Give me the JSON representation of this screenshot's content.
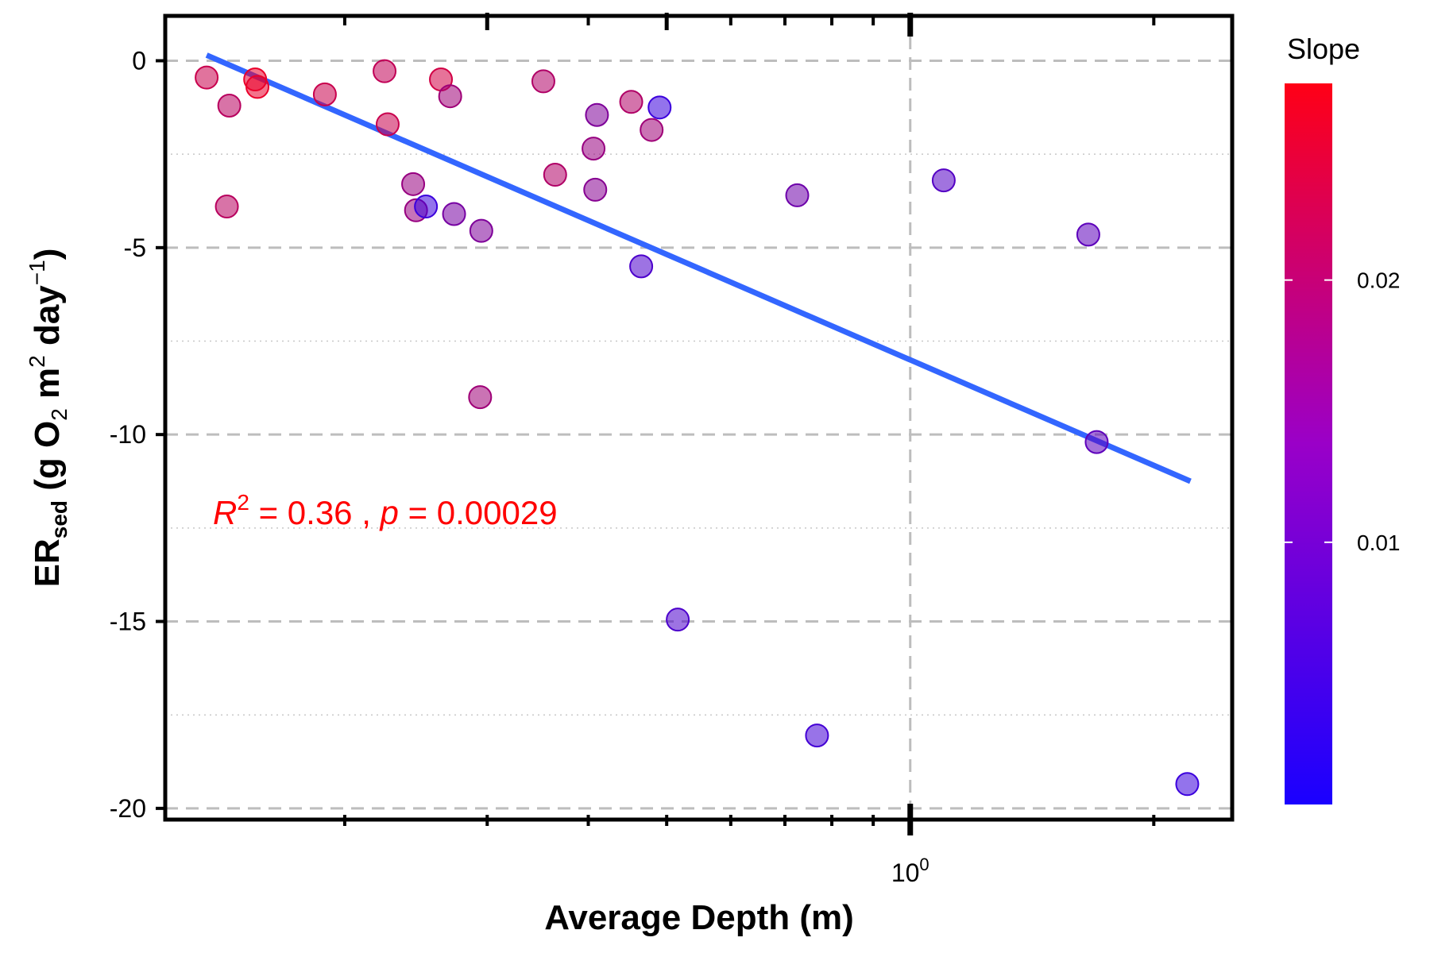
{
  "chart_data": {
    "type": "scatter",
    "xlabel": "Average Depth (m)",
    "ylabel": {
      "main": "ER",
      "main_sub": "sed",
      "part1": "(g O",
      "o2_sub": "2",
      "part2": " m",
      "m_sup": "2",
      "part3": " day",
      "day_sup": "−1",
      "part4": ")"
    },
    "x_scale": "log10",
    "x_tick_label": {
      "base": "10",
      "exponent": "0"
    },
    "y_ticks": [
      {
        "value": 0,
        "label": "0"
      },
      {
        "value": -5,
        "label": "-5"
      },
      {
        "value": -10,
        "label": "-10"
      },
      {
        "value": -15,
        "label": "-15"
      },
      {
        "value": -20,
        "label": "-20"
      }
    ],
    "xlim": [
      0.12,
      2.5
    ],
    "ylim": [
      -20.3,
      1.2
    ],
    "grid": true,
    "legend": {
      "title": "Slope",
      "position": "right",
      "type": "colorbar",
      "range": [
        0,
        0.0275
      ],
      "ticks": [
        {
          "value": 0.01,
          "label": "0.01"
        },
        {
          "value": 0.02,
          "label": "0.02"
        }
      ],
      "color_low": "#1a00ff",
      "color_high": "#ff0016"
    },
    "annotation": {
      "r_letter": "R",
      "r_sup": "2",
      "mid": " = 0.36 , ",
      "p_letter": "p",
      "tail": " = 0.00029",
      "color": "#ff0000"
    },
    "trendline": {
      "x": [
        0.135,
        2.22
      ],
      "y": [
        0.15,
        -11.25
      ],
      "color": "#3366ff"
    },
    "points": [
      {
        "x": 0.135,
        "y": -0.45,
        "slope": 0.021
      },
      {
        "x": 0.144,
        "y": -1.2,
        "slope": 0.019
      },
      {
        "x": 0.143,
        "y": -3.9,
        "slope": 0.019
      },
      {
        "x": 0.155,
        "y": -0.5,
        "slope": 0.025
      },
      {
        "x": 0.156,
        "y": -0.7,
        "slope": 0.025
      },
      {
        "x": 0.189,
        "y": -0.9,
        "slope": 0.021
      },
      {
        "x": 0.224,
        "y": -0.28,
        "slope": 0.02
      },
      {
        "x": 0.226,
        "y": -1.7,
        "slope": 0.021
      },
      {
        "x": 0.243,
        "y": -3.3,
        "slope": 0.015
      },
      {
        "x": 0.245,
        "y": -4.0,
        "slope": 0.015
      },
      {
        "x": 0.252,
        "y": -3.9,
        "slope": 0.004
      },
      {
        "x": 0.263,
        "y": -0.5,
        "slope": 0.022
      },
      {
        "x": 0.27,
        "y": -0.95,
        "slope": 0.016
      },
      {
        "x": 0.273,
        "y": -4.1,
        "slope": 0.011
      },
      {
        "x": 0.295,
        "y": -4.55,
        "slope": 0.012
      },
      {
        "x": 0.294,
        "y": -9.0,
        "slope": 0.016
      },
      {
        "x": 0.352,
        "y": -0.55,
        "slope": 0.018
      },
      {
        "x": 0.364,
        "y": -3.05,
        "slope": 0.018
      },
      {
        "x": 0.406,
        "y": -2.35,
        "slope": 0.015
      },
      {
        "x": 0.41,
        "y": -1.45,
        "slope": 0.012
      },
      {
        "x": 0.408,
        "y": -3.45,
        "slope": 0.013
      },
      {
        "x": 0.452,
        "y": -1.1,
        "slope": 0.018
      },
      {
        "x": 0.465,
        "y": -5.5,
        "slope": 0.006
      },
      {
        "x": 0.479,
        "y": -1.85,
        "slope": 0.016
      },
      {
        "x": 0.49,
        "y": -1.25,
        "slope": 0.004
      },
      {
        "x": 0.516,
        "y": -14.95,
        "slope": 0.006
      },
      {
        "x": 0.725,
        "y": -3.6,
        "slope": 0.01
      },
      {
        "x": 0.767,
        "y": -18.05,
        "slope": 0.005
      },
      {
        "x": 1.1,
        "y": -3.2,
        "slope": 0.007
      },
      {
        "x": 1.66,
        "y": -4.65,
        "slope": 0.008
      },
      {
        "x": 1.7,
        "y": -10.2,
        "slope": 0.008
      },
      {
        "x": 2.2,
        "y": -19.35,
        "slope": 0.004
      }
    ]
  }
}
